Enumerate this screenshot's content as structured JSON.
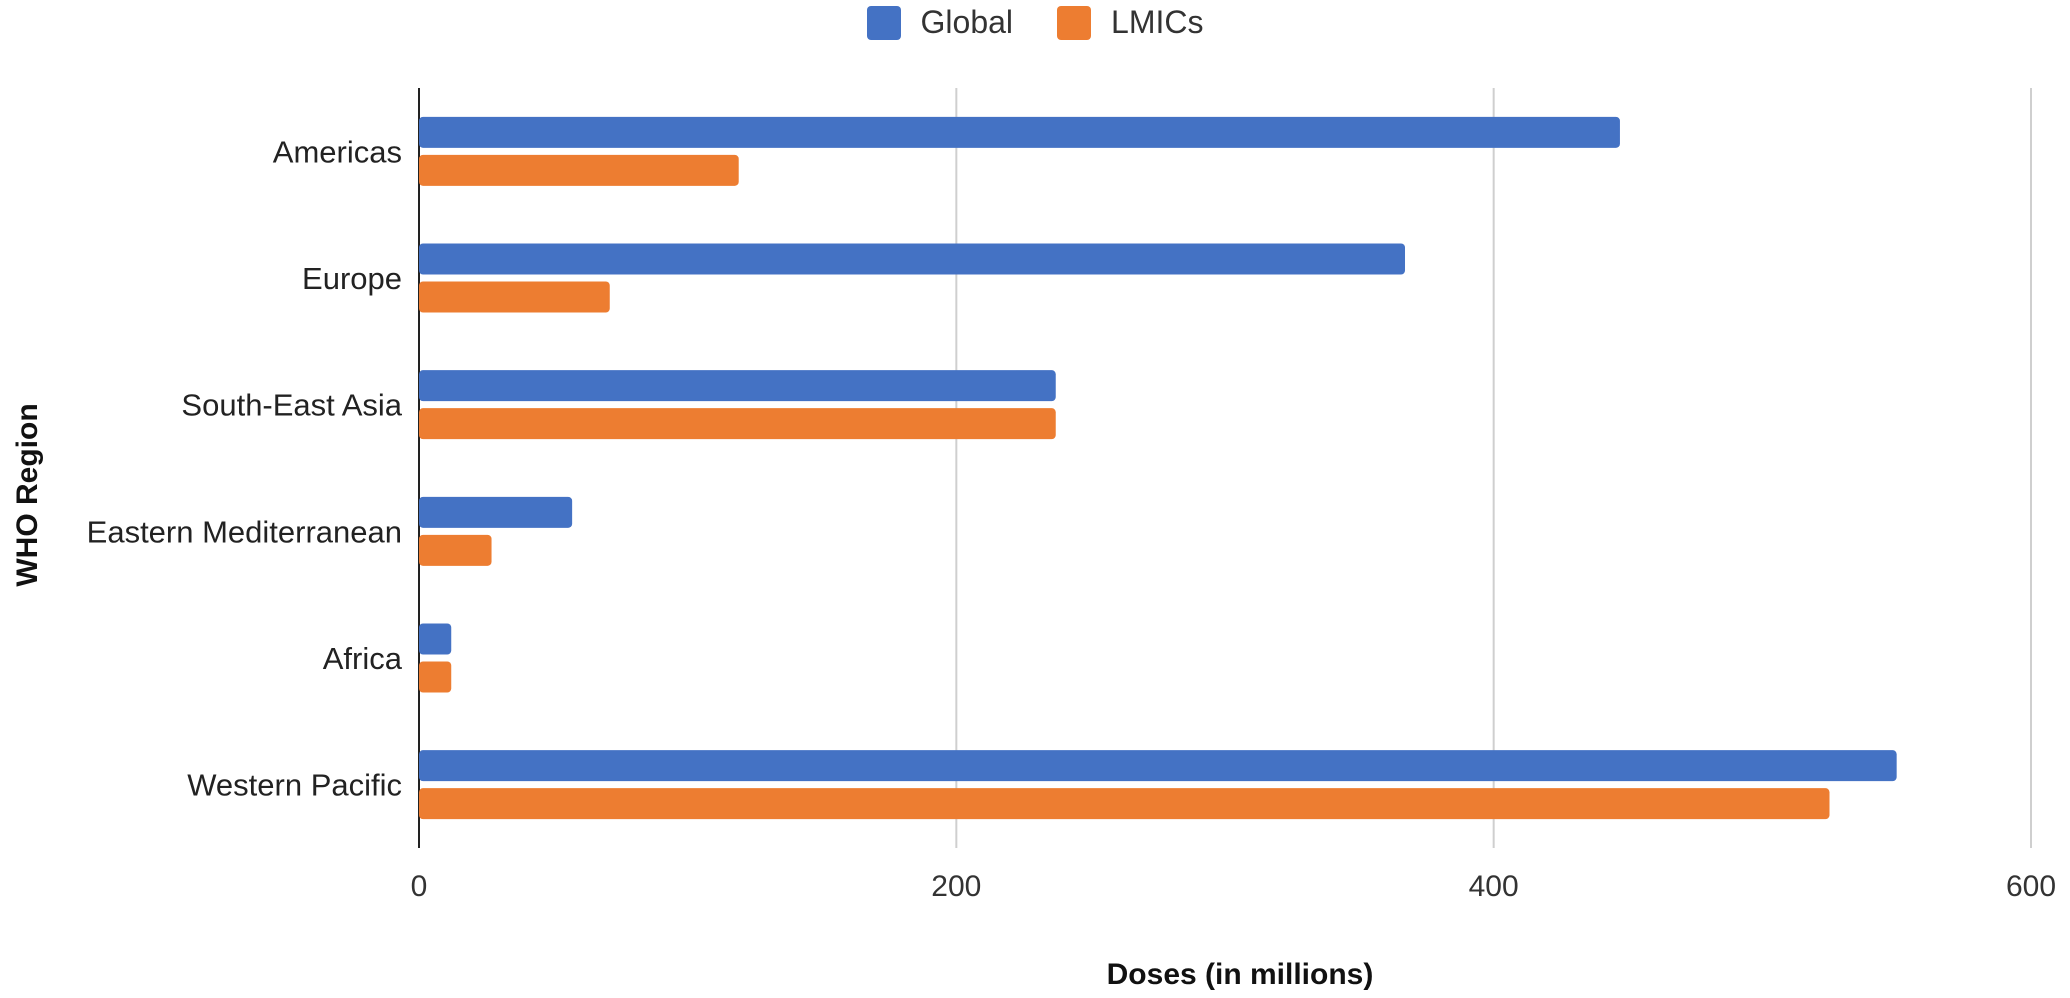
{
  "chart_data": {
    "type": "bar",
    "orientation": "horizontal",
    "categories": [
      "Americas",
      "Europe",
      "South-East Asia",
      "Eastern Mediterranean",
      "Africa",
      "Western Pacific"
    ],
    "series": [
      {
        "name": "Global",
        "color": "#4472C4",
        "values": [
          447,
          367,
          237,
          57,
          12,
          550
        ]
      },
      {
        "name": "LMICs",
        "color": "#ED7D31",
        "values": [
          119,
          71,
          237,
          27,
          12,
          525
        ]
      }
    ],
    "x_ticks": [
      "0",
      "200",
      "400",
      "600"
    ],
    "xlim": [
      0,
      600
    ],
    "xlabel": "Doses (in millions)",
    "ylabel": "WHO Region",
    "legend_position": "top-center",
    "grid": "vertical"
  }
}
